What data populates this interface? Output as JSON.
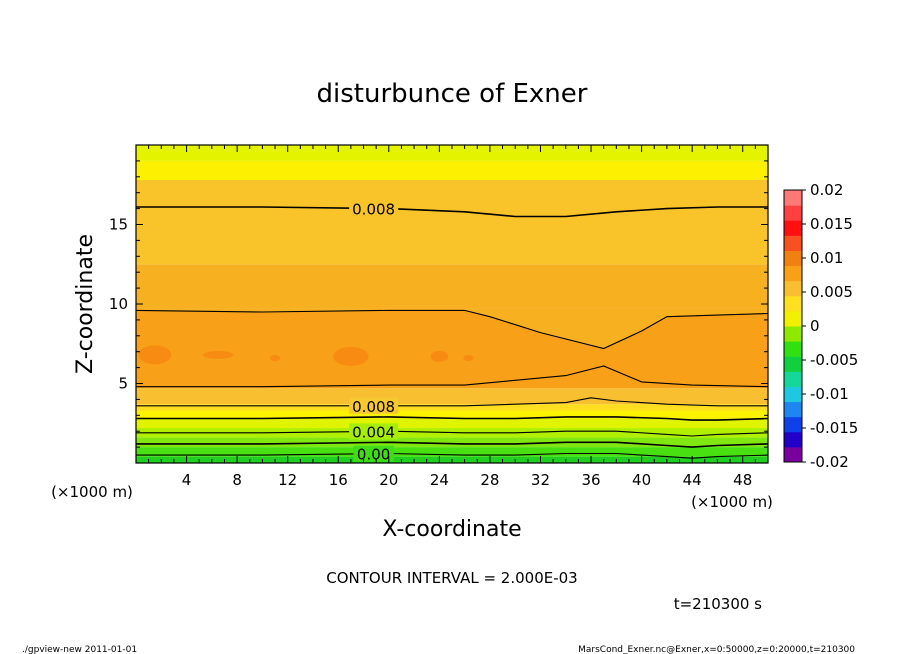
{
  "chart_data": {
    "type": "heatmap",
    "title": "disturbunce of Exner",
    "xlabel": "X-coordinate",
    "ylabel": "Z-coordinate",
    "x_unit": "(×1000 m)",
    "z_unit": "(×1000 m)",
    "xlim": [
      0,
      50
    ],
    "ylim": [
      0,
      20
    ],
    "x_ticks": [
      4,
      8,
      12,
      16,
      20,
      24,
      28,
      32,
      36,
      40,
      44,
      48
    ],
    "y_ticks": [
      5,
      10,
      15
    ],
    "contour_labels": [
      "0.008",
      "0.008",
      "0.004",
      "0.00"
    ],
    "contour_interval_text": "CONTOUR INTERVAL = 2.000E-03",
    "time_text": "t=210300 s",
    "colorbar": {
      "ticks": [
        "0.02",
        "0.015",
        "0.01",
        "0.005",
        "0",
        "-0.005",
        "-0.01",
        "-0.015",
        "-0.02"
      ],
      "range": [
        -0.02,
        0.02
      ],
      "colors": [
        "#7a009e",
        "#2200c8",
        "#1040e8",
        "#1e86f0",
        "#1ec8e0",
        "#14d89a",
        "#10d040",
        "#30e010",
        "#8ee800",
        "#f0f000",
        "#ffe020",
        "#f8bf30",
        "#f8a018",
        "#f08010",
        "#f85020",
        "#ff1010",
        "#ff4040",
        "#ff7878"
      ]
    },
    "bands": [
      {
        "z": [
          0.0,
          0.4
        ],
        "color": "#20d020"
      },
      {
        "z": [
          0.4,
          1.0
        ],
        "color": "#48e010"
      },
      {
        "z": [
          1.0,
          1.6
        ],
        "color": "#80e810"
      },
      {
        "z": [
          1.6,
          2.2
        ],
        "color": "#b0f000"
      },
      {
        "z": [
          2.2,
          2.8
        ],
        "color": "#e0f400"
      },
      {
        "z": [
          2.8,
          3.3
        ],
        "color": "#fbf200"
      },
      {
        "z": [
          3.3,
          3.7
        ],
        "color": "#ffde20"
      },
      {
        "z": [
          3.7,
          4.7
        ],
        "color": "#f8c030"
      },
      {
        "z": [
          4.7,
          9.7
        ],
        "color": "#f8a018"
      },
      {
        "z": [
          9.7,
          12.5
        ],
        "color": "#f6b020"
      },
      {
        "z": [
          12.5,
          17.8
        ],
        "color": "#f9c42a"
      },
      {
        "z": [
          17.8,
          19.0
        ],
        "color": "#fdf000"
      },
      {
        "z": [
          19.0,
          20.0
        ],
        "color": "#e4f400"
      }
    ],
    "contours": [
      {
        "x": [
          0,
          10,
          20,
          26,
          30,
          34,
          38,
          42,
          46,
          50
        ],
        "z": [
          16.1,
          16.1,
          16.0,
          15.8,
          15.5,
          15.5,
          15.8,
          16.0,
          16.1,
          16.1
        ],
        "label": "0.008"
      },
      {
        "x": [
          0,
          10,
          20,
          26,
          28,
          32,
          37,
          40,
          42,
          46,
          50
        ],
        "z": [
          9.6,
          9.5,
          9.6,
          9.6,
          9.2,
          8.2,
          7.2,
          8.3,
          9.2,
          9.3,
          9.4
        ]
      },
      {
        "x": [
          0,
          10,
          20,
          26,
          30,
          34,
          37,
          40,
          44,
          50
        ],
        "z": [
          4.8,
          4.8,
          4.9,
          4.9,
          5.2,
          5.5,
          6.1,
          5.1,
          4.9,
          4.8
        ]
      },
      {
        "x": [
          0,
          10,
          20,
          26,
          30,
          34,
          36,
          38,
          42,
          46,
          50
        ],
        "z": [
          3.6,
          3.6,
          3.6,
          3.6,
          3.7,
          3.8,
          4.1,
          3.9,
          3.7,
          3.6,
          3.6
        ],
        "label": "0.008"
      },
      {
        "x": [
          0,
          10,
          20,
          26,
          30,
          34,
          38,
          42,
          44,
          46,
          50
        ],
        "z": [
          2.8,
          2.8,
          2.9,
          2.8,
          2.8,
          2.9,
          2.9,
          2.8,
          2.7,
          2.7,
          2.8
        ]
      },
      {
        "x": [
          0,
          10,
          20,
          26,
          30,
          34,
          38,
          42,
          44,
          46,
          50
        ],
        "z": [
          1.9,
          1.9,
          2.0,
          1.9,
          1.9,
          2.0,
          2.0,
          1.8,
          1.7,
          1.8,
          1.9
        ],
        "label": "0.004"
      },
      {
        "x": [
          0,
          10,
          20,
          26,
          30,
          34,
          38,
          42,
          44,
          46,
          50
        ],
        "z": [
          1.2,
          1.2,
          1.3,
          1.2,
          1.2,
          1.3,
          1.3,
          1.1,
          1.0,
          1.1,
          1.2
        ]
      },
      {
        "x": [
          0,
          10,
          20,
          26,
          30,
          34,
          38,
          42,
          44,
          46,
          50
        ],
        "z": [
          0.5,
          0.5,
          0.6,
          0.5,
          0.5,
          0.6,
          0.6,
          0.4,
          0.3,
          0.4,
          0.5
        ],
        "label": "0.00"
      }
    ],
    "blobs": [
      {
        "x": 1.5,
        "z": 6.8,
        "rx": 1.3,
        "rz": 0.6
      },
      {
        "x": 6.5,
        "z": 6.8,
        "rx": 1.2,
        "rz": 0.25
      },
      {
        "x": 11.0,
        "z": 6.6,
        "rx": 0.4,
        "rz": 0.2
      },
      {
        "x": 17.0,
        "z": 6.7,
        "rx": 1.4,
        "rz": 0.6
      },
      {
        "x": 24.0,
        "z": 6.7,
        "rx": 0.7,
        "rz": 0.35
      },
      {
        "x": 26.3,
        "z": 6.6,
        "rx": 0.4,
        "rz": 0.2
      }
    ],
    "blob_color": "#f88c12"
  },
  "footer": {
    "left": "./gpview-new   2011-01-01",
    "right": "MarsCond_Exner.nc@Exner,x=0:50000,z=0:20000,t=210300"
  }
}
